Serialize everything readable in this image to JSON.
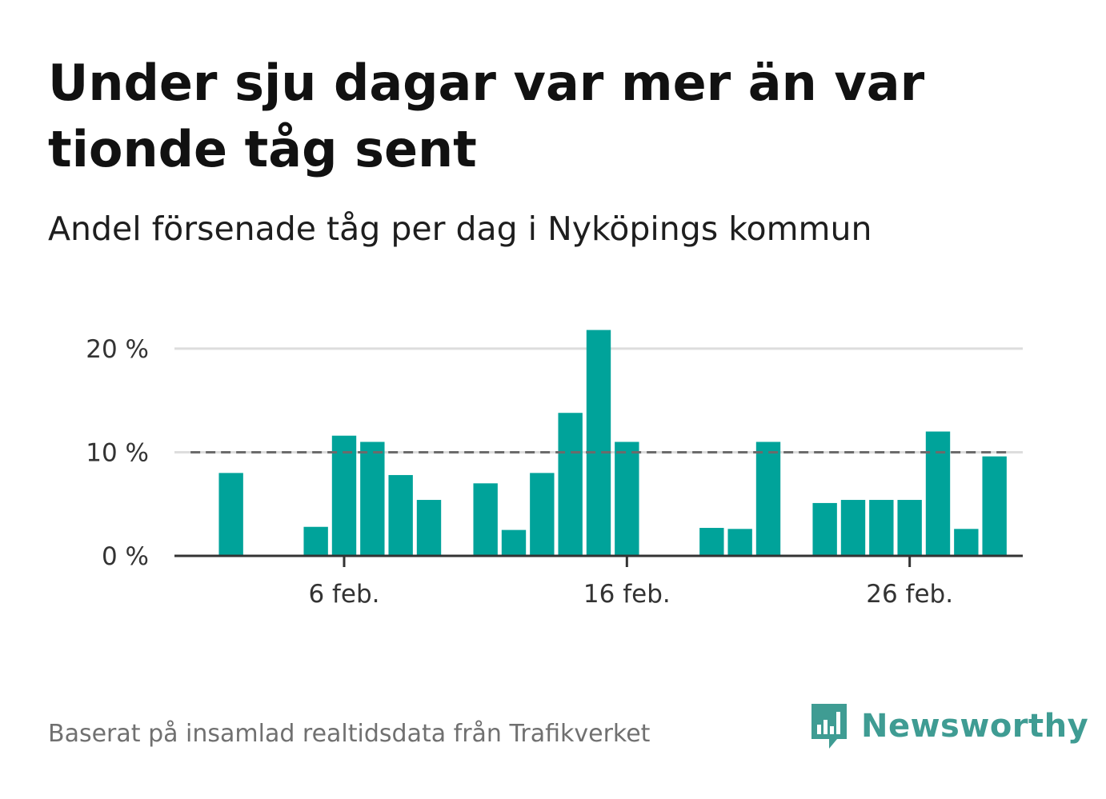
{
  "title": "Under sju dagar var mer än var tionde tåg sent",
  "subtitle": "Andel försenade tåg per dag i Nyköpings kommun",
  "source": "Baserat på insamlad realtidsdata från Trafikverket",
  "brand": {
    "name": "Newsworthy",
    "icon": "newsworthy-logo-icon",
    "color": "#3f9c93"
  },
  "colors": {
    "bar": "#00a39a",
    "reference_line": "#6b6b6b",
    "grid": "#dddddd",
    "axis": "#333333"
  },
  "chart_data": {
    "type": "bar",
    "x": [
      1,
      2,
      3,
      4,
      5,
      6,
      7,
      8,
      9,
      10,
      11,
      12,
      13,
      14,
      15,
      16,
      17,
      18,
      19,
      20,
      21,
      22,
      23,
      24,
      25,
      26,
      27,
      28,
      29
    ],
    "values": [
      0,
      8.0,
      0,
      0,
      2.8,
      11.6,
      11.0,
      7.8,
      5.4,
      0,
      7.0,
      2.5,
      8.0,
      13.8,
      21.8,
      11.0,
      0,
      0,
      2.7,
      2.6,
      11.0,
      0,
      5.1,
      5.4,
      5.4,
      5.4,
      12.0,
      2.6,
      9.6
    ],
    "reference_value": 10,
    "xticks": [
      {
        "x": 6,
        "label": "6 feb."
      },
      {
        "x": 16,
        "label": "16 feb."
      },
      {
        "x": 26,
        "label": "26 feb."
      }
    ],
    "yticks": [
      {
        "value": 0,
        "label": "0 %"
      },
      {
        "value": 10,
        "label": "10 %"
      },
      {
        "value": 20,
        "label": "20 %"
      }
    ],
    "ylim": [
      0,
      22
    ],
    "xlim": [
      0,
      30
    ],
    "grid": true,
    "xlabel": "",
    "ylabel": ""
  }
}
